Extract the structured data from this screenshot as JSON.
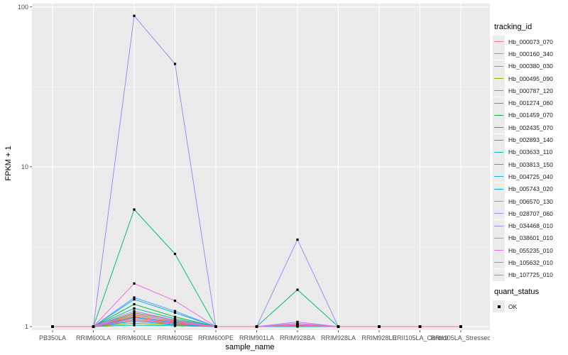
{
  "chart_data": {
    "type": "line",
    "xlabel": "sample_name",
    "ylabel": "FPKM + 1",
    "y_scale": "log10",
    "ylim": [
      0.95,
      105
    ],
    "y_ticks": [
      {
        "value": 1,
        "label": "1"
      },
      {
        "value": 10,
        "label": "10"
      },
      {
        "value": 100,
        "label": "100"
      }
    ],
    "categories": [
      "PB350LA",
      "RRIM600LA",
      "RRIM600LE",
      "RRIM600SE",
      "RRIM600PE",
      "RRIM901LA",
      "RRIM928BA",
      "RRIM928LA",
      "RRIM928LE",
      "RRII105LA_Control",
      "RRII105LA_Stressed"
    ],
    "grid": true,
    "legend_position": "right",
    "series": [
      {
        "name": "Hb_000073_070",
        "color": "#F8766D",
        "values": [
          1,
          1,
          1.12,
          1.05,
          1,
          1,
          1.02,
          1,
          1,
          1,
          1
        ]
      },
      {
        "name": "Hb_000160_340",
        "color": "#E88526",
        "values": [
          1,
          1,
          1.15,
          1.08,
          1,
          1,
          1.03,
          1,
          1,
          1,
          1
        ]
      },
      {
        "name": "Hb_000380_030",
        "color": "#D39200",
        "values": [
          1,
          1,
          1.1,
          1.04,
          1,
          1,
          1.01,
          1,
          1,
          1,
          1
        ]
      },
      {
        "name": "Hb_000495_090",
        "color": "#B79F00",
        "values": [
          1,
          1,
          1.18,
          1.09,
          1,
          1,
          1.02,
          1,
          1,
          1,
          1
        ]
      },
      {
        "name": "Hb_000787_120",
        "color": "#93AA00",
        "values": [
          1,
          1,
          1.05,
          1.02,
          1,
          1,
          1.01,
          1,
          1,
          1,
          1
        ]
      },
      {
        "name": "Hb_001274_060",
        "color": "#5EB300",
        "values": [
          1,
          1,
          1.22,
          1.1,
          1,
          1,
          1.03,
          1,
          1,
          1,
          1
        ]
      },
      {
        "name": "Hb_001459_070",
        "color": "#00BA38",
        "values": [
          1,
          1,
          1.38,
          1.15,
          1,
          1,
          1.02,
          1,
          1,
          1,
          1
        ]
      },
      {
        "name": "Hb_002435_070",
        "color": "#00BF74",
        "values": [
          1,
          1,
          5.4,
          2.85,
          1,
          1,
          1.7,
          1,
          1,
          1,
          1
        ]
      },
      {
        "name": "Hb_002893_140",
        "color": "#00C19F",
        "values": [
          1,
          1,
          1.3,
          1.12,
          1,
          1,
          1.02,
          1,
          1,
          1,
          1
        ]
      },
      {
        "name": "Hb_003633_110",
        "color": "#00BFC4",
        "values": [
          1,
          1,
          1.02,
          1.01,
          1,
          1,
          1.0,
          1,
          1,
          1,
          1
        ]
      },
      {
        "name": "Hb_003813_150",
        "color": "#00B9E3",
        "values": [
          1,
          1,
          1.48,
          1.22,
          1,
          1,
          1.01,
          1,
          1,
          1,
          1
        ]
      },
      {
        "name": "Hb_004725_040",
        "color": "#00ADFA",
        "values": [
          1,
          1,
          1.08,
          1.03,
          1,
          1,
          1.01,
          1,
          1,
          1,
          1
        ]
      },
      {
        "name": "Hb_005743_020",
        "color": "#00A5FF",
        "values": [
          1,
          1,
          1.14,
          1.06,
          1,
          1,
          1.02,
          1,
          1,
          1,
          1
        ]
      },
      {
        "name": "Hb_006570_130",
        "color": "#619CFF",
        "values": [
          1,
          1,
          1.52,
          1.25,
          1,
          1,
          1.01,
          1,
          1,
          1,
          1
        ]
      },
      {
        "name": "Hb_028707_060",
        "color": "#9590FF",
        "values": [
          1,
          1,
          88,
          44,
          1,
          1,
          3.5,
          1,
          1,
          1,
          1
        ]
      },
      {
        "name": "Hb_034468_010",
        "color": "#B983FF",
        "values": [
          1,
          1,
          1.2,
          1.08,
          1,
          1,
          1.07,
          1,
          1,
          1,
          1
        ]
      },
      {
        "name": "Hb_038601_010",
        "color": "#DB72FB",
        "values": [
          1,
          1,
          1.25,
          1.1,
          1,
          1,
          1.05,
          1,
          1,
          1,
          1
        ]
      },
      {
        "name": "Hb_055235_010",
        "color": "#F564E3",
        "values": [
          1,
          1,
          1.86,
          1.45,
          1,
          1,
          1.02,
          1,
          1,
          1,
          1
        ]
      },
      {
        "name": "Hb_105632_010",
        "color": "#FF62BC",
        "values": [
          1,
          1,
          1.1,
          1.05,
          1,
          1,
          1.01,
          1,
          1,
          1,
          1
        ]
      },
      {
        "name": "Hb_107725_010",
        "color": "#FF6C91",
        "values": [
          1,
          1,
          1.16,
          1.07,
          1,
          1,
          1.02,
          1,
          1,
          1,
          1
        ]
      }
    ],
    "legend_title": "tracking_id",
    "point_legend": {
      "title": "quant_status",
      "items": [
        "OK"
      ]
    }
  }
}
